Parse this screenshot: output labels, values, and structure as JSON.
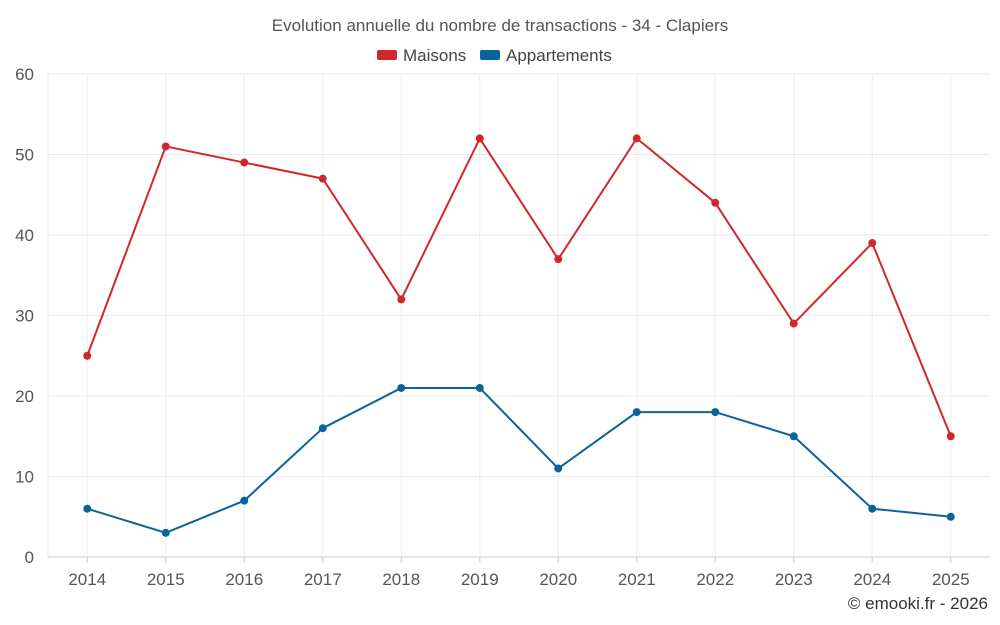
{
  "chart_data": {
    "type": "line",
    "title": "Evolution annuelle du nombre de transactions - 34 - Clapiers",
    "categories": [
      "2014",
      "2015",
      "2016",
      "2017",
      "2018",
      "2019",
      "2020",
      "2021",
      "2022",
      "2023",
      "2024",
      "2025"
    ],
    "series": [
      {
        "name": "Maisons",
        "color": "#d0282a",
        "values": [
          25,
          51,
          49,
          47,
          32,
          52,
          37,
          52,
          44,
          29,
          39,
          15
        ]
      },
      {
        "name": "Appartements",
        "color": "#0a6399",
        "values": [
          6,
          3,
          7,
          16,
          21,
          21,
          11,
          18,
          18,
          15,
          6,
          5
        ]
      }
    ],
    "ylim": [
      0,
      60
    ],
    "yticks": [
      0,
      10,
      20,
      30,
      40,
      50,
      60
    ],
    "xlabel": "",
    "ylabel": "",
    "grid": true,
    "legend": "top-center"
  },
  "credit": "© emooki.fr - 2026"
}
